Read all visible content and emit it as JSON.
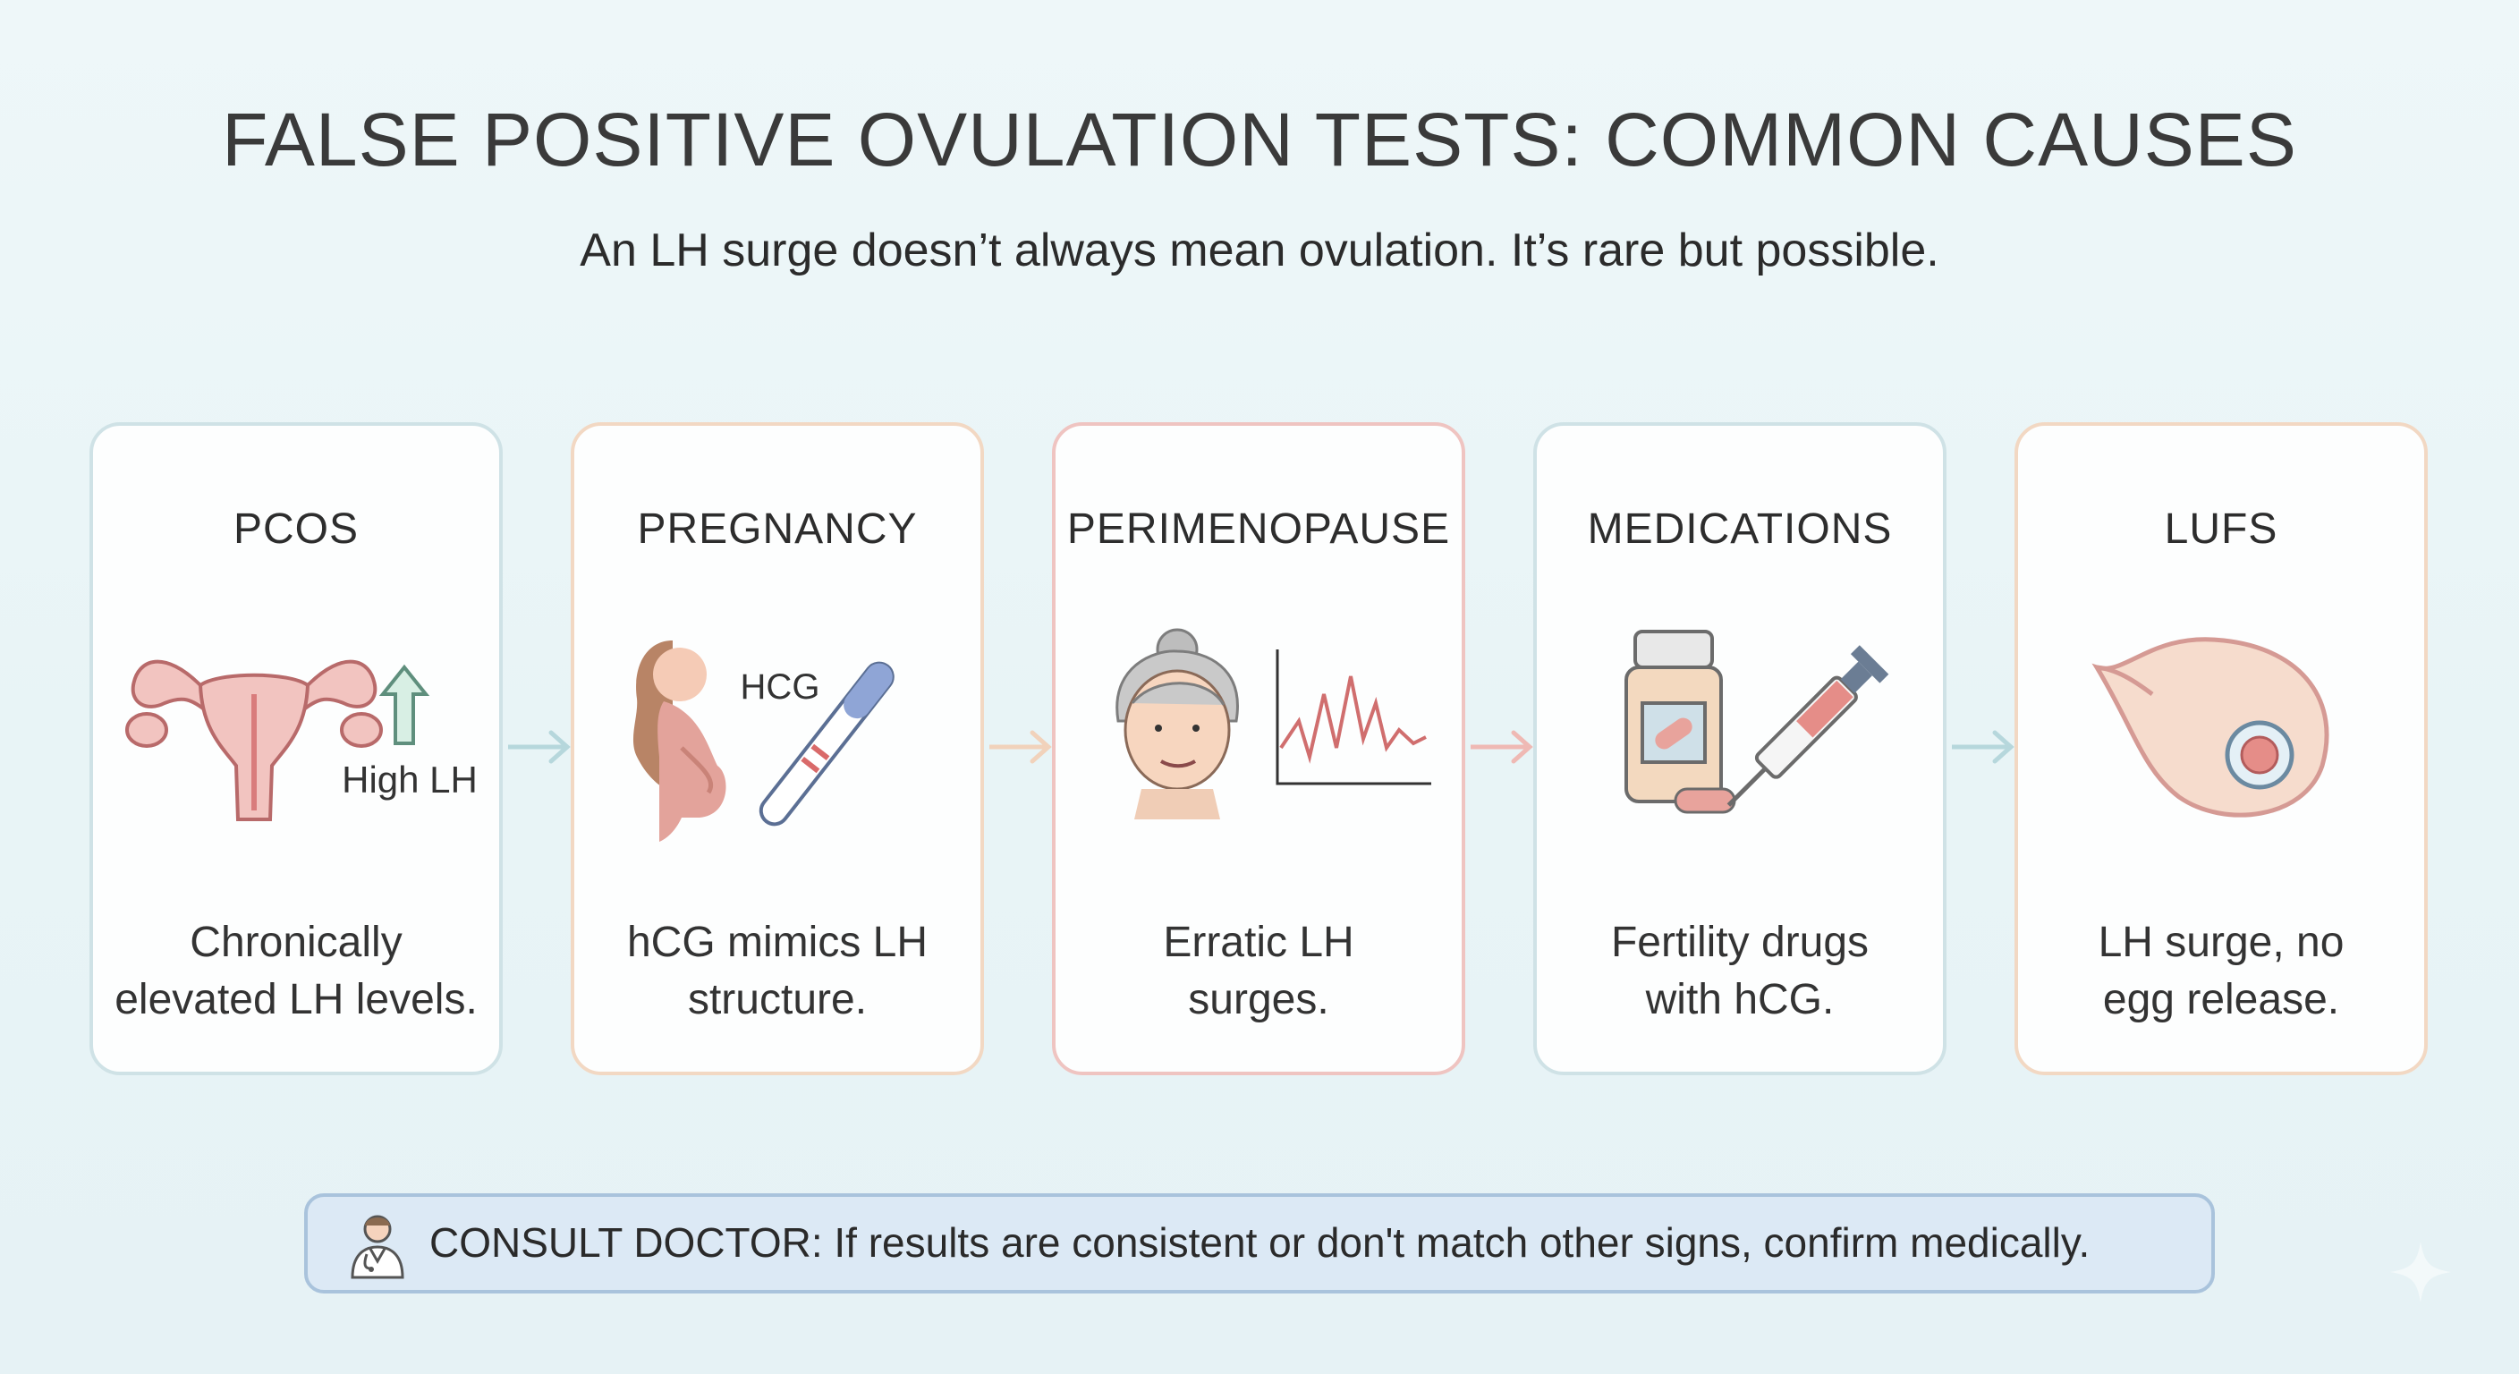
{
  "header": {
    "title": "FALSE POSITIVE OVULATION TESTS: COMMON CAUSES",
    "subtitle": "An LH surge doesn’t always mean ovulation. It’s rare but possible."
  },
  "cards": [
    {
      "title": "PCOS",
      "icon": "uterus-icon",
      "icon_label": "High LH",
      "desc_line1": "Chronically",
      "desc_line2": "elevated LH levels."
    },
    {
      "title": "PREGNANCY",
      "icon": "pregnant-woman-icon",
      "icon_label": "HCG",
      "desc_line1": "hCG mimics LH",
      "desc_line2": "structure."
    },
    {
      "title": "PERIMENOPAUSE",
      "icon": "older-woman-icon",
      "desc_line1": "Erratic LH",
      "desc_line2": "surges."
    },
    {
      "title": "MEDICATIONS",
      "icon": "pill-bottle-icon",
      "desc_line1": "Fertility drugs",
      "desc_line2": "with hCG."
    },
    {
      "title": "LUFS",
      "icon": "follicle-icon",
      "desc_line1": "LH surge, no",
      "desc_line2": "egg release."
    }
  ],
  "note": {
    "label": "CONSULT DOCTOR:",
    "text": " If results are consistent or don't match other signs, confirm medically.",
    "icon": "doctor-icon"
  },
  "colors": {
    "background": "#eaf5f7",
    "blue_border": "#cfe2e6",
    "peach_border": "#f2d8c3",
    "pink_border": "#efc4c1",
    "note_bg": "#dce9f5"
  }
}
